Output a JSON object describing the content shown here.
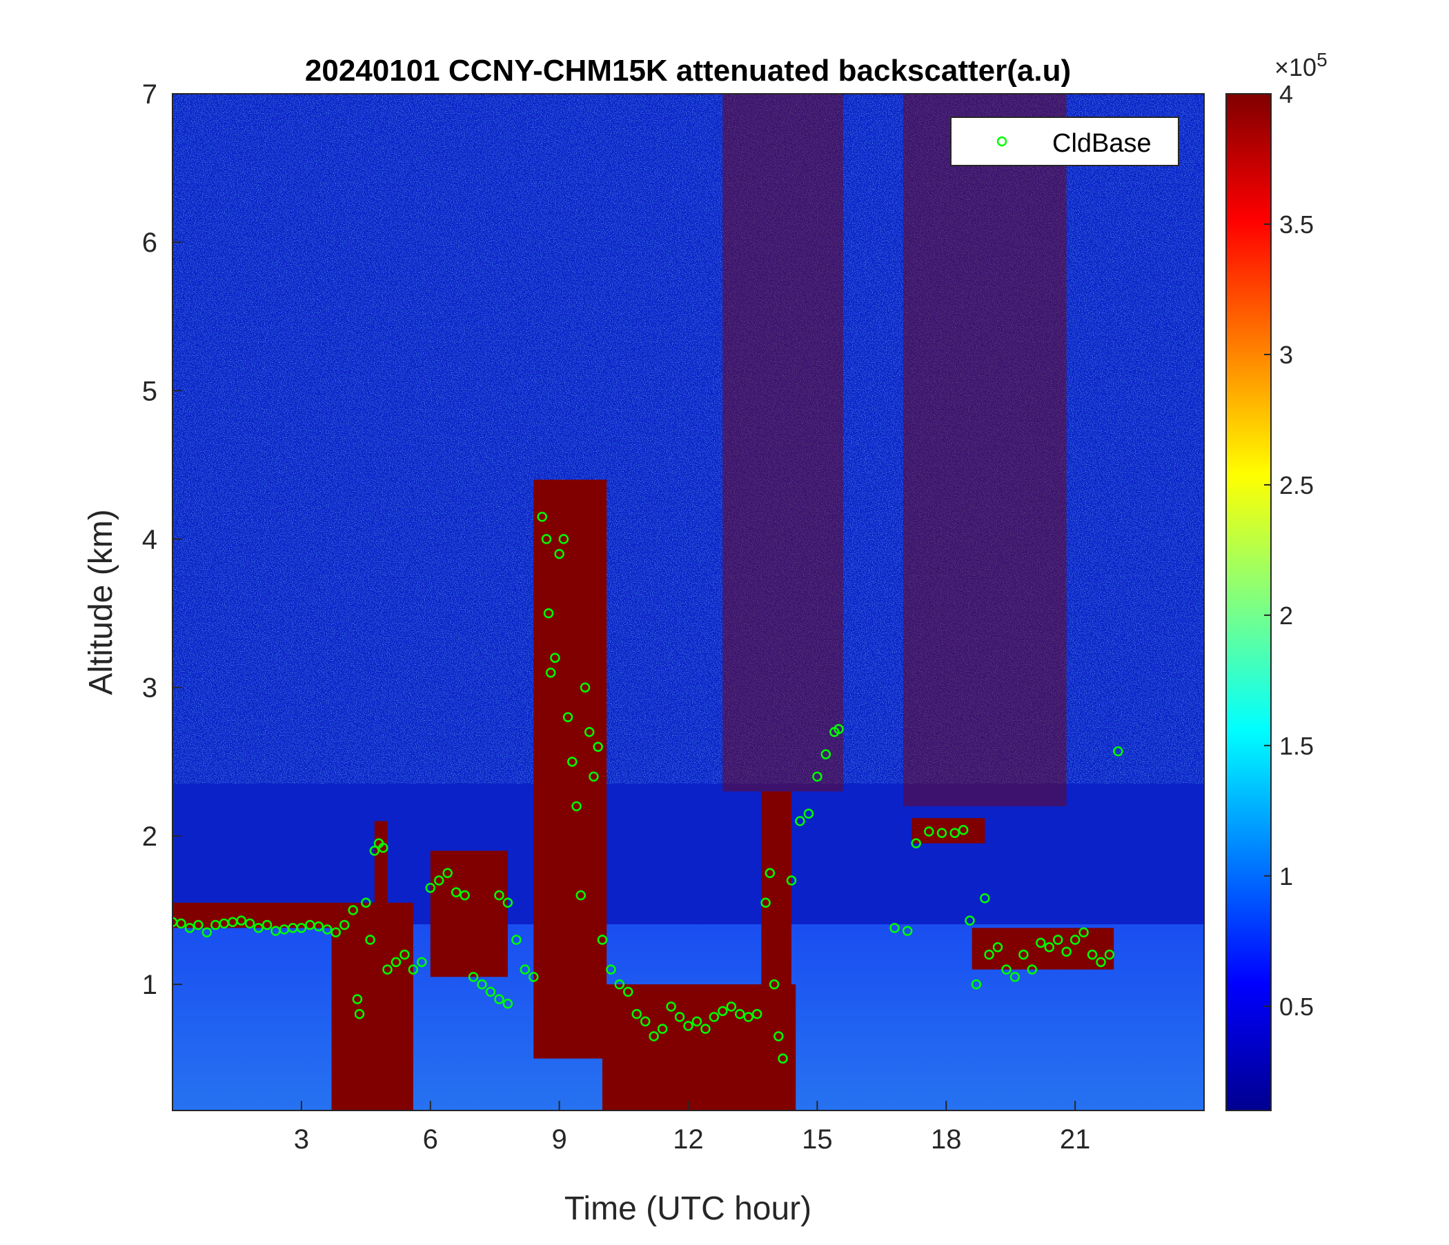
{
  "chart_data": {
    "type": "heatmap",
    "title": "20240101 CCNY-CHM15K attenuated backscatter(a.u)",
    "xlabel": "Time (UTC hour)",
    "ylabel": "Altitude (km)",
    "xlim": [
      0,
      24
    ],
    "ylim": [
      0.15,
      7
    ],
    "xticks": [
      3,
      6,
      9,
      12,
      15,
      18,
      21
    ],
    "yticks": [
      1,
      2,
      3,
      4,
      5,
      6,
      7
    ],
    "colorbar": {
      "colormap": "jet",
      "range": [
        0.1,
        4
      ],
      "ticks": [
        0.5,
        1,
        1.5,
        2,
        2.5,
        3,
        3.5,
        4
      ],
      "exponent_label": "×10",
      "exponent_power": "5"
    },
    "legend": {
      "position": "top-right",
      "entries": [
        "CldBase"
      ]
    },
    "marker_color": "#00ff00",
    "cloud_layers": [
      {
        "t0": 0.0,
        "t1": 3.7,
        "bottom": 1.38,
        "top": 1.55
      },
      {
        "t0": 3.7,
        "t1": 5.6,
        "bottom": 0.15,
        "top": 1.55
      },
      {
        "t0": 4.7,
        "t1": 5.0,
        "bottom": 0.8,
        "top": 2.1
      },
      {
        "t0": 6.0,
        "t1": 7.8,
        "bottom": 1.05,
        "top": 1.9
      },
      {
        "t0": 8.4,
        "t1": 10.1,
        "bottom": 0.5,
        "top": 4.4
      },
      {
        "t0": 10.0,
        "t1": 14.5,
        "bottom": 0.15,
        "top": 1.0
      },
      {
        "t0": 13.7,
        "t1": 14.4,
        "bottom": 0.15,
        "top": 2.3
      },
      {
        "t0": 17.2,
        "t1": 18.9,
        "bottom": 1.95,
        "top": 2.12
      },
      {
        "t0": 18.6,
        "t1": 21.9,
        "bottom": 1.1,
        "top": 1.38
      }
    ],
    "aerosol_plumes": [
      {
        "t0": 12.8,
        "t1": 15.6,
        "bottom": 2.3,
        "top": 7
      },
      {
        "t0": 17.0,
        "t1": 20.8,
        "bottom": 2.2,
        "top": 7
      }
    ],
    "cloud_base": [
      {
        "x": 0.0,
        "y": 1.42
      },
      {
        "x": 0.2,
        "y": 1.41
      },
      {
        "x": 0.4,
        "y": 1.38
      },
      {
        "x": 0.6,
        "y": 1.4
      },
      {
        "x": 0.8,
        "y": 1.35
      },
      {
        "x": 1.0,
        "y": 1.4
      },
      {
        "x": 1.2,
        "y": 1.41
      },
      {
        "x": 1.4,
        "y": 1.42
      },
      {
        "x": 1.6,
        "y": 1.43
      },
      {
        "x": 1.8,
        "y": 1.41
      },
      {
        "x": 2.0,
        "y": 1.38
      },
      {
        "x": 2.2,
        "y": 1.4
      },
      {
        "x": 2.4,
        "y": 1.36
      },
      {
        "x": 2.6,
        "y": 1.37
      },
      {
        "x": 2.8,
        "y": 1.38
      },
      {
        "x": 3.0,
        "y": 1.38
      },
      {
        "x": 3.2,
        "y": 1.4
      },
      {
        "x": 3.4,
        "y": 1.39
      },
      {
        "x": 3.6,
        "y": 1.37
      },
      {
        "x": 3.8,
        "y": 1.35
      },
      {
        "x": 4.0,
        "y": 1.4
      },
      {
        "x": 4.2,
        "y": 1.5
      },
      {
        "x": 4.3,
        "y": 0.9
      },
      {
        "x": 4.35,
        "y": 0.8
      },
      {
        "x": 4.5,
        "y": 1.55
      },
      {
        "x": 4.6,
        "y": 1.3
      },
      {
        "x": 4.7,
        "y": 1.9
      },
      {
        "x": 4.8,
        "y": 1.95
      },
      {
        "x": 4.9,
        "y": 1.92
      },
      {
        "x": 5.0,
        "y": 1.1
      },
      {
        "x": 5.2,
        "y": 1.15
      },
      {
        "x": 5.4,
        "y": 1.2
      },
      {
        "x": 5.6,
        "y": 1.1
      },
      {
        "x": 5.8,
        "y": 1.15
      },
      {
        "x": 6.0,
        "y": 1.65
      },
      {
        "x": 6.2,
        "y": 1.7
      },
      {
        "x": 6.4,
        "y": 1.75
      },
      {
        "x": 6.6,
        "y": 1.62
      },
      {
        "x": 6.8,
        "y": 1.6
      },
      {
        "x": 7.0,
        "y": 1.05
      },
      {
        "x": 7.2,
        "y": 1.0
      },
      {
        "x": 7.4,
        "y": 0.95
      },
      {
        "x": 7.6,
        "y": 0.9
      },
      {
        "x": 7.8,
        "y": 0.87
      },
      {
        "x": 7.6,
        "y": 1.6
      },
      {
        "x": 7.8,
        "y": 1.55
      },
      {
        "x": 8.0,
        "y": 1.3
      },
      {
        "x": 8.2,
        "y": 1.1
      },
      {
        "x": 8.4,
        "y": 1.05
      },
      {
        "x": 8.6,
        "y": 4.15
      },
      {
        "x": 8.7,
        "y": 4.0
      },
      {
        "x": 8.75,
        "y": 3.5
      },
      {
        "x": 8.8,
        "y": 3.1
      },
      {
        "x": 8.9,
        "y": 3.2
      },
      {
        "x": 9.0,
        "y": 3.9
      },
      {
        "x": 9.1,
        "y": 4.0
      },
      {
        "x": 9.2,
        "y": 2.8
      },
      {
        "x": 9.3,
        "y": 2.5
      },
      {
        "x": 9.4,
        "y": 2.2
      },
      {
        "x": 9.5,
        "y": 1.6
      },
      {
        "x": 9.6,
        "y": 3.0
      },
      {
        "x": 9.7,
        "y": 2.7
      },
      {
        "x": 9.8,
        "y": 2.4
      },
      {
        "x": 9.9,
        "y": 2.6
      },
      {
        "x": 10.0,
        "y": 1.3
      },
      {
        "x": 10.2,
        "y": 1.1
      },
      {
        "x": 10.4,
        "y": 1.0
      },
      {
        "x": 10.6,
        "y": 0.95
      },
      {
        "x": 10.8,
        "y": 0.8
      },
      {
        "x": 11.0,
        "y": 0.75
      },
      {
        "x": 11.2,
        "y": 0.65
      },
      {
        "x": 11.4,
        "y": 0.7
      },
      {
        "x": 11.6,
        "y": 0.85
      },
      {
        "x": 11.8,
        "y": 0.78
      },
      {
        "x": 12.0,
        "y": 0.72
      },
      {
        "x": 12.2,
        "y": 0.75
      },
      {
        "x": 12.4,
        "y": 0.7
      },
      {
        "x": 12.6,
        "y": 0.78
      },
      {
        "x": 12.8,
        "y": 0.82
      },
      {
        "x": 13.0,
        "y": 0.85
      },
      {
        "x": 13.2,
        "y": 0.8
      },
      {
        "x": 13.4,
        "y": 0.78
      },
      {
        "x": 13.6,
        "y": 0.8
      },
      {
        "x": 13.8,
        "y": 1.55
      },
      {
        "x": 13.9,
        "y": 1.75
      },
      {
        "x": 14.0,
        "y": 1.0
      },
      {
        "x": 14.1,
        "y": 0.65
      },
      {
        "x": 14.2,
        "y": 0.5
      },
      {
        "x": 14.4,
        "y": 1.7
      },
      {
        "x": 14.6,
        "y": 2.1
      },
      {
        "x": 14.8,
        "y": 2.15
      },
      {
        "x": 15.0,
        "y": 2.4
      },
      {
        "x": 15.2,
        "y": 2.55
      },
      {
        "x": 15.4,
        "y": 2.7
      },
      {
        "x": 15.5,
        "y": 2.72
      },
      {
        "x": 16.8,
        "y": 1.38
      },
      {
        "x": 17.1,
        "y": 1.36
      },
      {
        "x": 17.3,
        "y": 1.95
      },
      {
        "x": 17.6,
        "y": 2.03
      },
      {
        "x": 17.9,
        "y": 2.02
      },
      {
        "x": 18.2,
        "y": 2.02
      },
      {
        "x": 18.4,
        "y": 2.04
      },
      {
        "x": 18.55,
        "y": 1.43
      },
      {
        "x": 18.7,
        "y": 1.0
      },
      {
        "x": 18.9,
        "y": 1.58
      },
      {
        "x": 19.0,
        "y": 1.2
      },
      {
        "x": 19.2,
        "y": 1.25
      },
      {
        "x": 19.4,
        "y": 1.1
      },
      {
        "x": 19.6,
        "y": 1.05
      },
      {
        "x": 19.8,
        "y": 1.2
      },
      {
        "x": 20.0,
        "y": 1.1
      },
      {
        "x": 20.2,
        "y": 1.28
      },
      {
        "x": 20.4,
        "y": 1.25
      },
      {
        "x": 20.6,
        "y": 1.3
      },
      {
        "x": 20.8,
        "y": 1.22
      },
      {
        "x": 21.0,
        "y": 1.3
      },
      {
        "x": 21.2,
        "y": 1.35
      },
      {
        "x": 21.4,
        "y": 1.2
      },
      {
        "x": 21.6,
        "y": 1.15
      },
      {
        "x": 21.8,
        "y": 1.2
      },
      {
        "x": 22.0,
        "y": 2.57
      }
    ]
  }
}
